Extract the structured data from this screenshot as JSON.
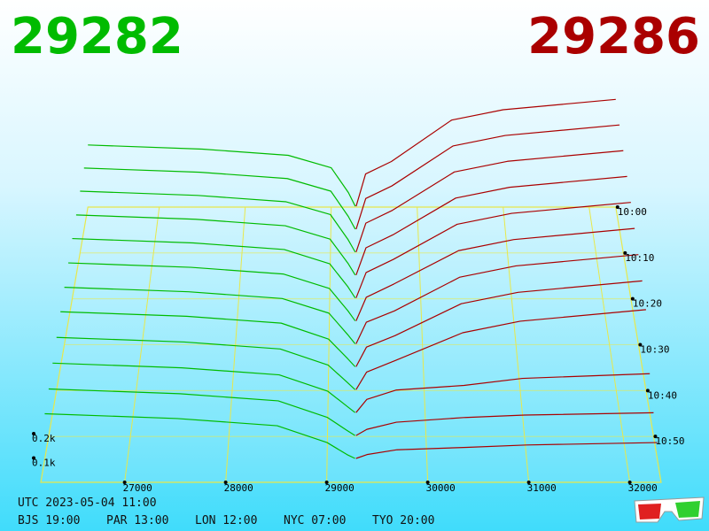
{
  "chart_data": {
    "type": "depth3d",
    "bid_price": 29282,
    "ask_price": 29286,
    "bid_color": "#00bb00",
    "ask_color": "#aa0000",
    "floor_color": "#e8e84a",
    "xlim": [
      26170,
      32310
    ],
    "xticks": [
      27000,
      28000,
      29000,
      30000,
      31000,
      32000
    ],
    "tlim": [
      0,
      60
    ],
    "tticks": [
      {
        "value": 0,
        "label": "10:00"
      },
      {
        "value": 10,
        "label": "10:10"
      },
      {
        "value": 20,
        "label": "10:20"
      },
      {
        "value": 30,
        "label": "10:30"
      },
      {
        "value": 40,
        "label": "10:40"
      },
      {
        "value": 50,
        "label": "10:50"
      }
    ],
    "zticks": [
      {
        "value": 100,
        "label": "0.1k"
      },
      {
        "value": 200,
        "label": "0.2k"
      }
    ],
    "slices": {
      "minutes": [
        0,
        5,
        10,
        15,
        20,
        25,
        30,
        35,
        40,
        45,
        50,
        55
      ],
      "bid_prices": [
        26170,
        27500,
        28500,
        29000,
        29200,
        29280
      ],
      "bid_volumes": [
        [
          300,
          280,
          250,
          190,
          70,
          4
        ],
        [
          295,
          275,
          245,
          185,
          65,
          4
        ],
        [
          290,
          270,
          240,
          180,
          62,
          4
        ],
        [
          282,
          262,
          232,
          170,
          58,
          4
        ],
        [
          275,
          255,
          225,
          160,
          55,
          4
        ],
        [
          265,
          245,
          215,
          150,
          50,
          4
        ],
        [
          255,
          235,
          205,
          140,
          45,
          4
        ],
        [
          245,
          225,
          195,
          125,
          40,
          4
        ],
        [
          230,
          210,
          180,
          110,
          35,
          4
        ],
        [
          215,
          195,
          165,
          95,
          30,
          4
        ],
        [
          200,
          180,
          150,
          80,
          25,
          4
        ],
        [
          190,
          170,
          140,
          70,
          20,
          4
        ]
      ],
      "ask_prices": [
        29290,
        29400,
        29700,
        30400,
        31000,
        32310
      ],
      "ask_volumes": [
        [
          4,
          160,
          220,
          420,
          470,
          520
        ],
        [
          4,
          150,
          210,
          400,
          450,
          500
        ],
        [
          4,
          140,
          200,
          380,
          430,
          480
        ],
        [
          4,
          130,
          190,
          360,
          410,
          460
        ],
        [
          4,
          120,
          180,
          340,
          390,
          440
        ],
        [
          4,
          110,
          170,
          320,
          370,
          420
        ],
        [
          4,
          100,
          150,
          300,
          350,
          400
        ],
        [
          4,
          90,
          140,
          280,
          330,
          380
        ],
        [
          4,
          80,
          130,
          250,
          300,
          350
        ],
        [
          4,
          60,
          100,
          120,
          150,
          170
        ],
        [
          4,
          30,
          60,
          80,
          90,
          100
        ],
        [
          4,
          20,
          40,
          50,
          60,
          70
        ]
      ]
    },
    "timestamp": "UTC 2023-05-04 11:00",
    "clocks": [
      "BJS 19:00",
      "PAR 13:00",
      "LON 12:00",
      "NYC 07:00",
      "TYO 20:00"
    ]
  }
}
